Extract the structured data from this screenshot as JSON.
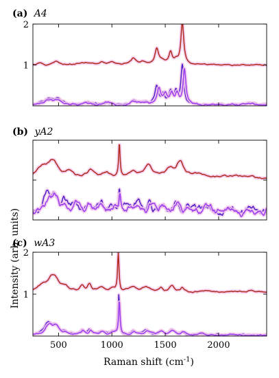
{
  "colors": {
    "red_trace": "#b22a1c",
    "red_peak": "#e4231c",
    "blue_trace": "#4b22c9",
    "violet_trace": "#9a3ef0",
    "halo": "#f2c6ec"
  },
  "figure": {
    "ylabel": "Intensity (arb. units)",
    "xlabel_main": "Raman shift (cm",
    "xlabel_sup": "-1",
    "xlabel_close": ")"
  },
  "chart_data": [
    {
      "type": "line",
      "panel_label": "(a)",
      "panel_name": "A4",
      "xlim": [
        260,
        2450
      ],
      "ylim": [
        0,
        2
      ],
      "yticks": [
        1,
        2
      ],
      "xticks": [
        500,
        1000,
        1500,
        2000
      ],
      "show_xtick_labels": false,
      "show_ytick_labels": true,
      "series": [
        {
          "color_key": "red_trace",
          "baseline": 1.0,
          "noise": 0.01,
          "peaks": [
            [
              320,
              0.06,
              30
            ],
            [
              480,
              0.08,
              40
            ],
            [
              750,
              0.05,
              50
            ],
            [
              900,
              0.05,
              40
            ],
            [
              1000,
              0.06,
              30
            ],
            [
              1200,
              0.16,
              28
            ],
            [
              1300,
              0.06,
              35
            ],
            [
              1420,
              0.38,
              20
            ],
            [
              1470,
              0.08,
              30
            ],
            [
              1550,
              0.28,
              18
            ],
            [
              1600,
              0.1,
              25
            ],
            [
              1660,
              1.0,
              16
            ]
          ]
        },
        {
          "color_key": "blue_trace",
          "baseline": 0.02,
          "noise": 0.015,
          "peaks": [
            [
              400,
              0.15,
              45
            ],
            [
              490,
              0.15,
              40
            ],
            [
              760,
              0.05,
              40
            ],
            [
              960,
              0.05,
              40
            ],
            [
              1200,
              0.08,
              40
            ],
            [
              1300,
              0.06,
              40
            ],
            [
              1420,
              0.45,
              20
            ],
            [
              1480,
              0.25,
              20
            ],
            [
              1550,
              0.3,
              18
            ],
            [
              1600,
              0.3,
              18
            ],
            [
              1660,
              0.95,
              16
            ],
            [
              2300,
              0.05,
              60
            ]
          ]
        },
        {
          "color_key": "violet_trace",
          "baseline": 0.02,
          "noise": 0.015,
          "peaks": [
            [
              400,
              0.12,
              45
            ],
            [
              490,
              0.12,
              40
            ],
            [
              760,
              0.05,
              40
            ],
            [
              960,
              0.05,
              40
            ],
            [
              1200,
              0.07,
              40
            ],
            [
              1300,
              0.05,
              40
            ],
            [
              1440,
              0.4,
              22
            ],
            [
              1500,
              0.22,
              20
            ],
            [
              1560,
              0.25,
              18
            ],
            [
              1610,
              0.25,
              18
            ],
            [
              1680,
              0.85,
              16
            ],
            [
              2300,
              0.04,
              60
            ]
          ]
        }
      ]
    },
    {
      "type": "line",
      "panel_label": "(b)",
      "panel_name": "yA2",
      "xlim": [
        260,
        2450
      ],
      "ylim": [
        0,
        2
      ],
      "yticks": [
        1,
        2
      ],
      "xticks": [
        500,
        1000,
        1500,
        2000
      ],
      "show_xtick_labels": false,
      "show_ytick_labels": false,
      "series": [
        {
          "color_key": "red_trace",
          "baseline": 1.05,
          "noise": 0.015,
          "peaks": [
            [
              350,
              0.25,
              60
            ],
            [
              450,
              0.38,
              55
            ],
            [
              600,
              0.12,
              50
            ],
            [
              800,
              0.18,
              40
            ],
            [
              950,
              0.12,
              40
            ],
            [
              1070,
              0.85,
              8
            ],
            [
              1200,
              0.18,
              40
            ],
            [
              1340,
              0.32,
              40
            ],
            [
              1550,
              0.2,
              60
            ],
            [
              1640,
              0.35,
              40
            ],
            [
              1800,
              0.1,
              60
            ],
            [
              2100,
              0.05,
              80
            ],
            [
              2300,
              0.03,
              60
            ]
          ]
        },
        {
          "color_key": "blue_trace",
          "baseline": 0.2,
          "noise": 0.06,
          "peaks": [
            [
              400,
              0.35,
              40
            ],
            [
              460,
              0.4,
              40
            ],
            [
              550,
              0.25,
              30
            ],
            [
              650,
              0.2,
              30
            ],
            [
              780,
              0.15,
              30
            ],
            [
              900,
              0.18,
              30
            ],
            [
              1000,
              0.15,
              30
            ],
            [
              1070,
              0.5,
              9
            ],
            [
              1150,
              0.2,
              30
            ],
            [
              1250,
              0.18,
              30
            ],
            [
              1350,
              0.2,
              30
            ],
            [
              1480,
              0.18,
              30
            ],
            [
              1600,
              0.2,
              30
            ],
            [
              1700,
              0.15,
              30
            ],
            [
              1900,
              0.12,
              40
            ],
            [
              2100,
              0.1,
              40
            ],
            [
              2300,
              0.08,
              40
            ]
          ]
        },
        {
          "color_key": "violet_trace",
          "baseline": 0.18,
          "noise": 0.06,
          "peaks": [
            [
              410,
              0.3,
              40
            ],
            [
              470,
              0.35,
              40
            ],
            [
              560,
              0.22,
              30
            ],
            [
              660,
              0.18,
              30
            ],
            [
              790,
              0.14,
              30
            ],
            [
              910,
              0.16,
              30
            ],
            [
              1010,
              0.13,
              30
            ],
            [
              1075,
              0.42,
              9
            ],
            [
              1160,
              0.18,
              30
            ],
            [
              1260,
              0.16,
              30
            ],
            [
              1360,
              0.18,
              30
            ],
            [
              1490,
              0.16,
              30
            ],
            [
              1610,
              0.18,
              30
            ],
            [
              1710,
              0.13,
              30
            ],
            [
              1910,
              0.1,
              40
            ],
            [
              2110,
              0.08,
              40
            ],
            [
              2310,
              0.07,
              40
            ]
          ]
        }
      ]
    },
    {
      "type": "line",
      "panel_label": "(c)",
      "panel_name": "wA3",
      "xlim": [
        260,
        2450
      ],
      "ylim": [
        0,
        2
      ],
      "yticks": [
        1,
        2
      ],
      "xticks": [
        500,
        1000,
        1500,
        2000
      ],
      "show_xtick_labels": true,
      "show_ytick_labels": true,
      "series": [
        {
          "color_key": "red_trace",
          "baseline": 1.05,
          "noise": 0.012,
          "peaks": [
            [
              350,
              0.12,
              50
            ],
            [
              450,
              0.38,
              55
            ],
            [
              560,
              0.1,
              50
            ],
            [
              720,
              0.14,
              20
            ],
            [
              790,
              0.16,
              18
            ],
            [
              900,
              0.1,
              40
            ],
            [
              1000,
              0.08,
              30
            ],
            [
              1060,
              0.92,
              8
            ],
            [
              1200,
              0.12,
              40
            ],
            [
              1320,
              0.12,
              40
            ],
            [
              1460,
              0.1,
              20
            ],
            [
              1560,
              0.14,
              25
            ],
            [
              1660,
              0.1,
              25
            ],
            [
              1900,
              0.03,
              60
            ],
            [
              2300,
              0.02,
              60
            ]
          ]
        },
        {
          "color_key": "blue_trace",
          "baseline": 0.02,
          "noise": 0.012,
          "peaks": [
            [
              400,
              0.25,
              40
            ],
            [
              470,
              0.2,
              40
            ],
            [
              560,
              0.05,
              40
            ],
            [
              720,
              0.1,
              20
            ],
            [
              790,
              0.12,
              20
            ],
            [
              900,
              0.08,
              30
            ],
            [
              1000,
              0.08,
              30
            ],
            [
              1065,
              0.95,
              8
            ],
            [
              1200,
              0.1,
              30
            ],
            [
              1320,
              0.12,
              30
            ],
            [
              1460,
              0.1,
              25
            ],
            [
              1560,
              0.12,
              25
            ],
            [
              1660,
              0.08,
              25
            ],
            [
              1850,
              0.03,
              40
            ],
            [
              2100,
              0.02,
              50
            ]
          ]
        },
        {
          "color_key": "violet_trace",
          "baseline": 0.02,
          "noise": 0.012,
          "peaks": [
            [
              410,
              0.22,
              40
            ],
            [
              480,
              0.18,
              40
            ],
            [
              570,
              0.05,
              40
            ],
            [
              730,
              0.09,
              20
            ],
            [
              800,
              0.1,
              20
            ],
            [
              910,
              0.07,
              30
            ],
            [
              1010,
              0.07,
              30
            ],
            [
              1070,
              0.8,
              8
            ],
            [
              1210,
              0.09,
              30
            ],
            [
              1330,
              0.1,
              30
            ],
            [
              1470,
              0.09,
              25
            ],
            [
              1570,
              0.1,
              25
            ],
            [
              1670,
              0.07,
              25
            ],
            [
              1860,
              0.03,
              40
            ],
            [
              2110,
              0.02,
              50
            ]
          ]
        }
      ]
    }
  ]
}
